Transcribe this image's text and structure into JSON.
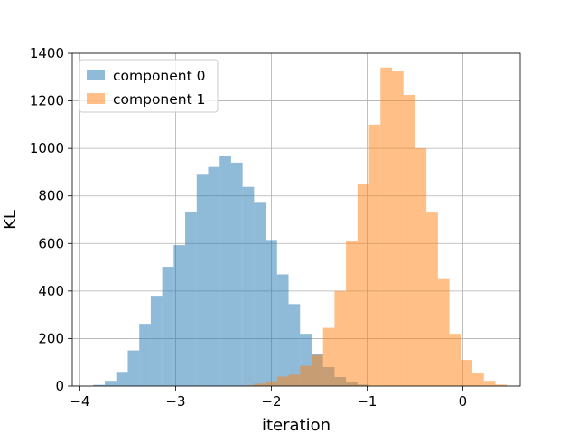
{
  "chart_data": {
    "type": "histogram",
    "title": "",
    "xlabel": "iteration",
    "ylabel": "KL",
    "xlim": [
      -4.08,
      0.6
    ],
    "ylim": [
      0,
      1400
    ],
    "xticks": [
      -4,
      -3,
      -2,
      -1,
      0
    ],
    "yticks": [
      0,
      200,
      400,
      600,
      800,
      1000,
      1200,
      1400
    ],
    "grid": true,
    "legend": "top-left",
    "series": [
      {
        "name": "component 0",
        "color": "#1f77b4",
        "alpha": 0.5,
        "bins": [
          {
            "x0": -3.86,
            "x1": -3.74,
            "count": 5
          },
          {
            "x0": -3.74,
            "x1": -3.62,
            "count": 22
          },
          {
            "x0": -3.62,
            "x1": -3.5,
            "count": 60
          },
          {
            "x0": -3.5,
            "x1": -3.38,
            "count": 150
          },
          {
            "x0": -3.38,
            "x1": -3.26,
            "count": 262
          },
          {
            "x0": -3.26,
            "x1": -3.14,
            "count": 380
          },
          {
            "x0": -3.14,
            "x1": -3.02,
            "count": 502
          },
          {
            "x0": -3.02,
            "x1": -2.9,
            "count": 593
          },
          {
            "x0": -2.9,
            "x1": -2.78,
            "count": 732
          },
          {
            "x0": -2.78,
            "x1": -2.66,
            "count": 893
          },
          {
            "x0": -2.66,
            "x1": -2.54,
            "count": 922
          },
          {
            "x0": -2.54,
            "x1": -2.42,
            "count": 968
          },
          {
            "x0": -2.42,
            "x1": -2.3,
            "count": 940
          },
          {
            "x0": -2.3,
            "x1": -2.18,
            "count": 838
          },
          {
            "x0": -2.18,
            "x1": -2.06,
            "count": 775
          },
          {
            "x0": -2.06,
            "x1": -1.94,
            "count": 615
          },
          {
            "x0": -1.94,
            "x1": -1.82,
            "count": 470
          },
          {
            "x0": -1.82,
            "x1": -1.7,
            "count": 345
          },
          {
            "x0": -1.7,
            "x1": -1.58,
            "count": 220
          },
          {
            "x0": -1.58,
            "x1": -1.46,
            "count": 135
          },
          {
            "x0": -1.46,
            "x1": -1.34,
            "count": 80
          },
          {
            "x0": -1.34,
            "x1": -1.22,
            "count": 38
          },
          {
            "x0": -1.22,
            "x1": -1.1,
            "count": 18
          },
          {
            "x0": -1.1,
            "x1": -0.98,
            "count": 6
          }
        ]
      },
      {
        "name": "component 1",
        "color": "#ff7f0e",
        "alpha": 0.5,
        "bins": [
          {
            "x0": -2.3,
            "x1": -2.18,
            "count": 3
          },
          {
            "x0": -2.18,
            "x1": -2.06,
            "count": 10
          },
          {
            "x0": -2.06,
            "x1": -1.94,
            "count": 20
          },
          {
            "x0": -1.94,
            "x1": -1.82,
            "count": 40
          },
          {
            "x0": -1.82,
            "x1": -1.7,
            "count": 48
          },
          {
            "x0": -1.7,
            "x1": -1.58,
            "count": 85
          },
          {
            "x0": -1.58,
            "x1": -1.46,
            "count": 130
          },
          {
            "x0": -1.46,
            "x1": -1.34,
            "count": 245
          },
          {
            "x0": -1.34,
            "x1": -1.22,
            "count": 400
          },
          {
            "x0": -1.22,
            "x1": -1.1,
            "count": 610
          },
          {
            "x0": -1.1,
            "x1": -0.98,
            "count": 850
          },
          {
            "x0": -0.98,
            "x1": -0.86,
            "count": 1100
          },
          {
            "x0": -0.86,
            "x1": -0.74,
            "count": 1340
          },
          {
            "x0": -0.74,
            "x1": -0.62,
            "count": 1325
          },
          {
            "x0": -0.62,
            "x1": -0.5,
            "count": 1225
          },
          {
            "x0": -0.5,
            "x1": -0.38,
            "count": 1000
          },
          {
            "x0": -0.38,
            "x1": -0.26,
            "count": 730
          },
          {
            "x0": -0.26,
            "x1": -0.14,
            "count": 450
          },
          {
            "x0": -0.14,
            "x1": -0.02,
            "count": 220
          },
          {
            "x0": -0.02,
            "x1": 0.1,
            "count": 110
          },
          {
            "x0": 0.1,
            "x1": 0.22,
            "count": 55
          },
          {
            "x0": 0.22,
            "x1": 0.34,
            "count": 22
          },
          {
            "x0": 0.34,
            "x1": 0.46,
            "count": 6
          }
        ]
      }
    ]
  }
}
